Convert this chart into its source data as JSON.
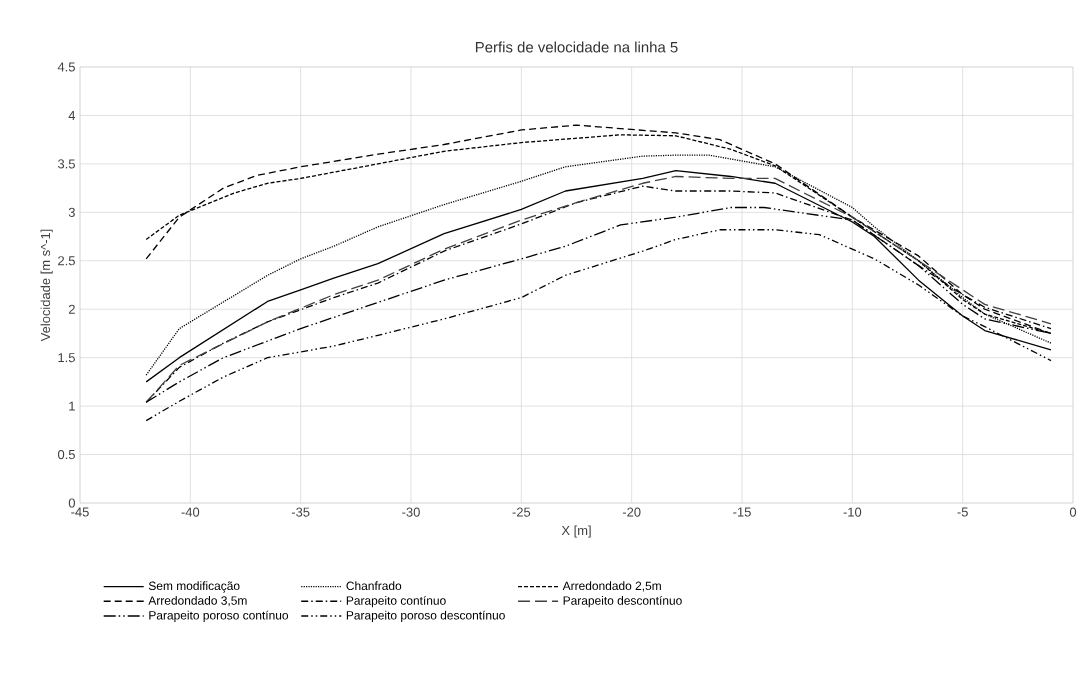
{
  "chart_data": {
    "type": "line",
    "title": "Perfis de velocidade na linha  5",
    "xlabel": "X [m]",
    "ylabel": "Velocidade [m s^-1]",
    "xlim": [
      -45,
      0
    ],
    "xticks": [
      -45,
      -40,
      -35,
      -30,
      -25,
      -20,
      -15,
      -10,
      -5,
      0
    ],
    "ylim": [
      0,
      4.5
    ],
    "yticks": [
      0,
      0.5,
      1,
      1.5,
      2,
      2.5,
      3,
      3.5,
      4,
      4.5
    ],
    "grid": true,
    "legend": "bottom",
    "marker": "none",
    "series": [
      {
        "name": "Sem modificação",
        "color": "#000000",
        "line_style": "solid",
        "x": [
          -42,
          -40.5,
          -36.5,
          -35,
          -33.5,
          -31.5,
          -28.5,
          -25,
          -23,
          -19.5,
          -18,
          -15.5,
          -13.5,
          -10,
          -9,
          -7,
          -5,
          -4,
          -1
        ],
        "values": [
          1.25,
          1.5,
          2.08,
          2.2,
          2.32,
          2.47,
          2.78,
          3.03,
          3.22,
          3.35,
          3.43,
          3.37,
          3.3,
          2.9,
          2.75,
          2.3,
          1.93,
          1.78,
          1.58
        ]
      },
      {
        "name": "Chanfrado",
        "color": "#000000",
        "line_style": "dotted",
        "x": [
          -42,
          -40.5,
          -36.5,
          -35,
          -33.5,
          -31.5,
          -28.5,
          -25,
          -23,
          -19.5,
          -18,
          -16.5,
          -13.5,
          -10,
          -9,
          -7,
          -5,
          -4,
          -1
        ],
        "values": [
          1.32,
          1.8,
          2.35,
          2.52,
          2.65,
          2.85,
          3.08,
          3.32,
          3.47,
          3.58,
          3.59,
          3.59,
          3.47,
          3.05,
          2.85,
          2.5,
          2.12,
          1.95,
          1.65
        ]
      },
      {
        "name": "Arredondado 2,5m",
        "color": "#000000",
        "line_style": "dashed",
        "x": [
          -42,
          -40.5,
          -38,
          -36.5,
          -35,
          -31.5,
          -28.5,
          -25,
          -20.5,
          -18,
          -15.5,
          -13.5,
          -10,
          -7,
          -5,
          -4,
          -1
        ],
        "values": [
          2.72,
          2.97,
          3.2,
          3.3,
          3.35,
          3.5,
          3.63,
          3.72,
          3.8,
          3.79,
          3.65,
          3.48,
          2.95,
          2.5,
          2.1,
          1.95,
          1.75
        ]
      },
      {
        "name": "Arredondado 3,5m",
        "color": "#000000",
        "line_style": "loosely dashed",
        "x": [
          -42,
          -40.5,
          -38.5,
          -37,
          -35,
          -31.5,
          -28.5,
          -25,
          -22.5,
          -18,
          -16,
          -13.5,
          -10,
          -7,
          -5,
          -4,
          -1
        ],
        "values": [
          2.52,
          2.95,
          3.25,
          3.38,
          3.47,
          3.6,
          3.7,
          3.85,
          3.9,
          3.82,
          3.75,
          3.5,
          2.95,
          2.55,
          2.15,
          2.0,
          1.75
        ]
      },
      {
        "name": "Parapeito contínuo",
        "color": "#000000",
        "line_style": "dashdotted",
        "x": [
          -42,
          -40.5,
          -38.5,
          -36.5,
          -33.5,
          -31.5,
          -28.5,
          -25,
          -22.5,
          -19.5,
          -18,
          -15.5,
          -13.5,
          -10,
          -7,
          -5,
          -4,
          -1
        ],
        "values": [
          1.04,
          1.4,
          1.65,
          1.87,
          2.12,
          2.27,
          2.6,
          2.88,
          3.1,
          3.27,
          3.22,
          3.22,
          3.2,
          2.92,
          2.45,
          2.15,
          2.02,
          1.8
        ]
      },
      {
        "name": "Parapeito descontínuo",
        "color": "#404040",
        "line_style": "long dashed",
        "x": [
          -42,
          -40.5,
          -36.5,
          -33.5,
          -31.5,
          -28.5,
          -25,
          -22.5,
          -19.5,
          -18,
          -15.5,
          -13.5,
          -10,
          -7,
          -5,
          -4,
          -1
        ],
        "values": [
          1.04,
          1.42,
          1.87,
          2.15,
          2.3,
          2.62,
          2.92,
          3.1,
          3.3,
          3.37,
          3.35,
          3.35,
          2.95,
          2.5,
          2.2,
          2.05,
          1.85
        ]
      },
      {
        "name": "Parapeito poroso contínuo",
        "color": "#000000",
        "line_style": "long dash dot dot",
        "x": [
          -42,
          -40.5,
          -38.5,
          -35,
          -31.5,
          -28.5,
          -25,
          -23,
          -20.5,
          -18,
          -15.5,
          -14,
          -10,
          -7,
          -5,
          -4,
          -1
        ],
        "values": [
          1.04,
          1.25,
          1.5,
          1.8,
          2.07,
          2.3,
          2.52,
          2.65,
          2.87,
          2.95,
          3.05,
          3.05,
          2.92,
          2.45,
          2.05,
          1.9,
          1.75
        ]
      },
      {
        "name": "Parapeito poroso descontínuo",
        "color": "#000000",
        "line_style": "dash dot dot",
        "x": [
          -42,
          -40.5,
          -38.5,
          -36.5,
          -33.5,
          -31.5,
          -28.5,
          -25,
          -23,
          -19.5,
          -18,
          -16,
          -13.5,
          -11.5,
          -9,
          -7,
          -5,
          -4,
          -1
        ],
        "values": [
          0.85,
          1.05,
          1.3,
          1.5,
          1.62,
          1.73,
          1.9,
          2.12,
          2.35,
          2.6,
          2.72,
          2.82,
          2.82,
          2.77,
          2.52,
          2.25,
          1.93,
          1.82,
          1.47
        ]
      }
    ]
  }
}
